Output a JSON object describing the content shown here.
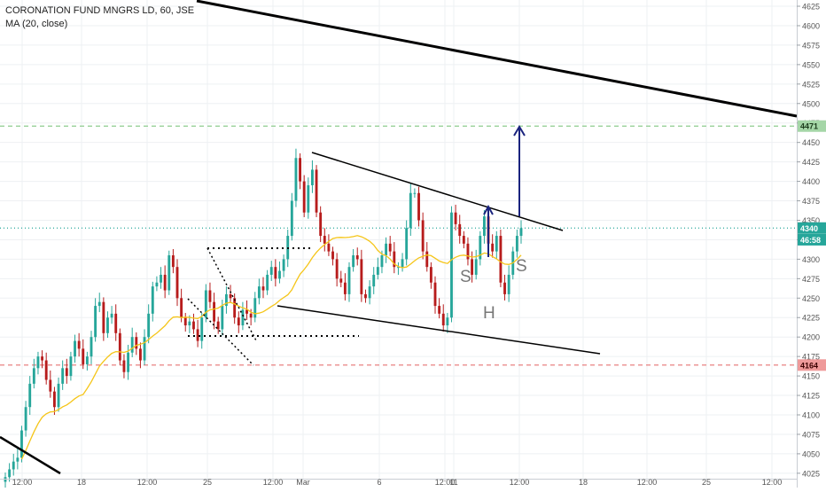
{
  "legend": {
    "symbol_line": "CORONATION FUND MNGRS LD, 60, JSE",
    "ma_line": "MA (20, close)"
  },
  "colors": {
    "up": "#26a69a",
    "down": "#b71c1c",
    "ma": "#f5c518",
    "target": "#8fcc8f",
    "support": "#e57373",
    "last": "#26a69a",
    "trendline": "#000000",
    "arrow": "#1a237e"
  },
  "chart_data": {
    "type": "candlestick",
    "title": "CORONATION FUND MNGRS LD, 60, JSE",
    "ylim": [
      4018,
      4633
    ],
    "y_ticks": [
      4025,
      4050,
      4075,
      4100,
      4125,
      4150,
      4175,
      4200,
      4225,
      4250,
      4275,
      4300,
      4325,
      4350,
      4375,
      4400,
      4425,
      4450,
      4475,
      4500,
      4525,
      4550,
      4575,
      4600,
      4625
    ],
    "x_ticks": [
      "12:00",
      "18",
      "12:00",
      "25",
      "12:00",
      "Mar",
      "6",
      "12:00",
      "11",
      "12:00",
      "18",
      "12:00",
      "25",
      "12:00"
    ],
    "price_labels": [
      {
        "label": "4471",
        "value": 4471,
        "style": "target"
      },
      {
        "label": "4340",
        "value": 4340,
        "style": "last"
      },
      {
        "label": "46:58",
        "value": 4325,
        "style": "last"
      },
      {
        "label": "4164",
        "value": 4164,
        "style": "support"
      }
    ],
    "horizontal_lines": [
      {
        "name": "target",
        "value": 4471
      },
      {
        "name": "support",
        "value": 4164
      },
      {
        "name": "last-price",
        "value": 4340
      }
    ],
    "pattern_labels": [
      "S",
      "H",
      "S"
    ],
    "close": [
      4020,
      4030,
      4040,
      4045,
      4080,
      4110,
      4140,
      4160,
      4175,
      4170,
      4145,
      4130,
      4110,
      4140,
      4160,
      4150,
      4175,
      4195,
      4185,
      4165,
      4175,
      4200,
      4240,
      4245,
      4205,
      4225,
      4230,
      4205,
      4170,
      4155,
      4180,
      4200,
      4185,
      4170,
      4200,
      4230,
      4265,
      4270,
      4280,
      4260,
      4305,
      4290,
      4250,
      4225,
      4215,
      4220,
      4210,
      4195,
      4225,
      4260,
      4245,
      4220,
      4210,
      4240,
      4255,
      4250,
      4225,
      4215,
      4235,
      4230,
      4225,
      4250,
      4265,
      4260,
      4280,
      4290,
      4275,
      4285,
      4300,
      4330,
      4375,
      4430,
      4400,
      4360,
      4395,
      4415,
      4360,
      4330,
      4320,
      4310,
      4300,
      4275,
      4270,
      4255,
      4290,
      4305,
      4300,
      4255,
      4250,
      4265,
      4280,
      4290,
      4305,
      4320,
      4310,
      4290,
      4290,
      4300,
      4340,
      4385,
      4385,
      4350,
      4310,
      4290,
      4270,
      4240,
      4230,
      4215,
      4225,
      4360,
      4345,
      4330,
      4320,
      4300,
      4280,
      4300,
      4330,
      4355,
      4320,
      4310,
      4330,
      4270,
      4255,
      4280,
      4310,
      4330,
      4340
    ]
  }
}
